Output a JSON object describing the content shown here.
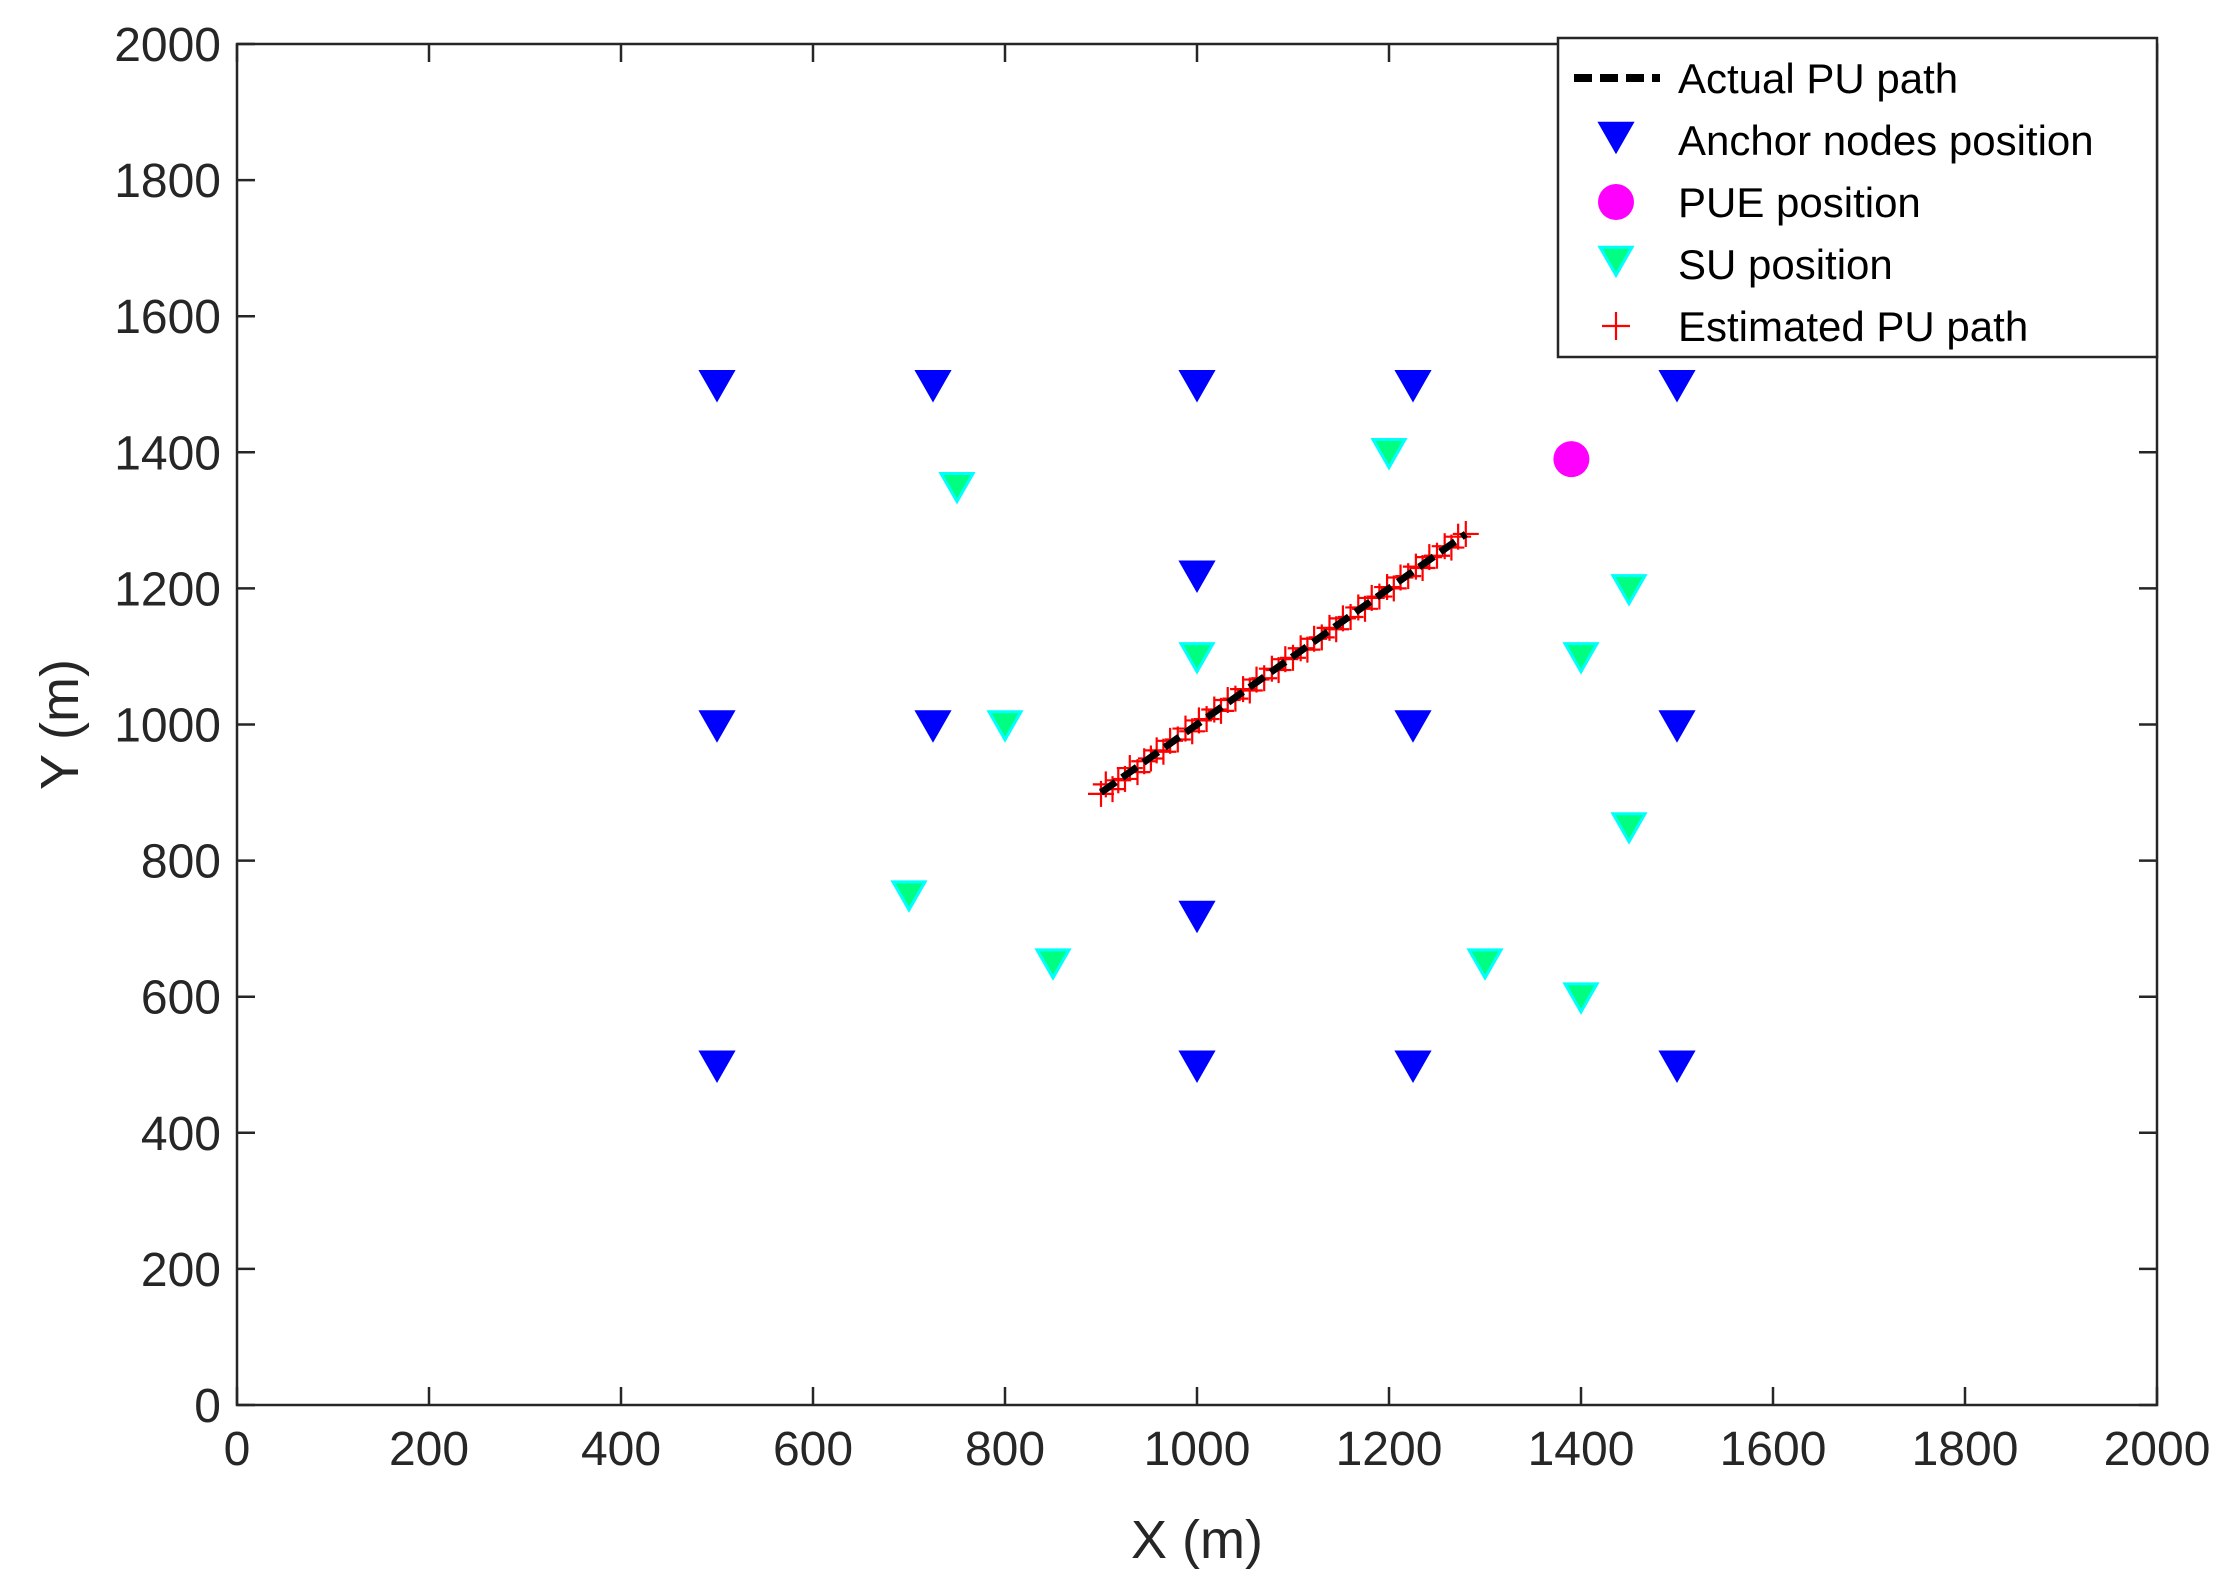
{
  "chart_data": {
    "type": "scatter",
    "xlabel": "X (m)",
    "ylabel": "Y (m)",
    "xlim": [
      0,
      2000
    ],
    "ylim": [
      0,
      2000
    ],
    "xticks": [
      0,
      200,
      400,
      600,
      800,
      1000,
      1200,
      1400,
      1600,
      1800,
      2000
    ],
    "yticks": [
      0,
      200,
      400,
      600,
      800,
      1000,
      1200,
      1400,
      1600,
      1800,
      2000
    ],
    "grid": false,
    "legend_position": "top-right",
    "series": [
      {
        "name": "Actual PU path",
        "kind": "line",
        "color": "#000000",
        "x": [
          900,
          1280
        ],
        "y": [
          900,
          1280
        ]
      },
      {
        "name": "Anchor nodes position",
        "kind": "marker",
        "marker": "down-triangle",
        "color": "#0000ff",
        "x": [
          500,
          725,
          1000,
          1225,
          1500,
          1000,
          500,
          725,
          1225,
          1500,
          1000,
          500,
          1000,
          1225,
          1500
        ],
        "y": [
          1500,
          1500,
          1500,
          1500,
          1500,
          1220,
          1000,
          1000,
          1000,
          1000,
          720,
          500,
          500,
          500,
          500
        ]
      },
      {
        "name": "PUE position",
        "kind": "marker",
        "marker": "circle",
        "color": "#ff00ff",
        "x": [
          1390
        ],
        "y": [
          1390
        ]
      },
      {
        "name": "SU position",
        "kind": "marker",
        "marker": "down-triangle",
        "color": "#00ff80",
        "edge_color": "#00ffff",
        "x": [
          750,
          1200,
          1450,
          1000,
          1400,
          800,
          1450,
          700,
          850,
          1300,
          1400
        ],
        "y": [
          1350,
          1400,
          1200,
          1100,
          1100,
          1000,
          850,
          750,
          650,
          650,
          600
        ]
      },
      {
        "name": "Estimated PU path",
        "kind": "marker",
        "marker": "plus",
        "color": "#ff0000",
        "x": [
          900,
          905,
          912,
          918,
          925,
          930,
          938,
          945,
          952,
          958,
          965,
          972,
          980,
          988,
          995,
          1002,
          1010,
          1018,
          1025,
          1032,
          1040,
          1048,
          1055,
          1062,
          1070,
          1078,
          1085,
          1092,
          1100,
          1108,
          1115,
          1122,
          1130,
          1138,
          1145,
          1152,
          1160,
          1168,
          1175,
          1182,
          1190,
          1198,
          1205,
          1212,
          1220,
          1228,
          1235,
          1242,
          1250,
          1258,
          1265,
          1272,
          1280
        ],
        "y": [
          898,
          912,
          905,
          918,
          920,
          936,
          930,
          946,
          950,
          962,
          960,
          976,
          978,
          994,
          990,
          1006,
          1008,
          1022,
          1020,
          1036,
          1038,
          1052,
          1050,
          1066,
          1068,
          1082,
          1080,
          1096,
          1098,
          1112,
          1110,
          1126,
          1128,
          1142,
          1140,
          1156,
          1158,
          1172,
          1170,
          1186,
          1188,
          1202,
          1200,
          1216,
          1218,
          1232,
          1230,
          1246,
          1248,
          1262,
          1260,
          1276,
          1280
        ]
      }
    ]
  }
}
